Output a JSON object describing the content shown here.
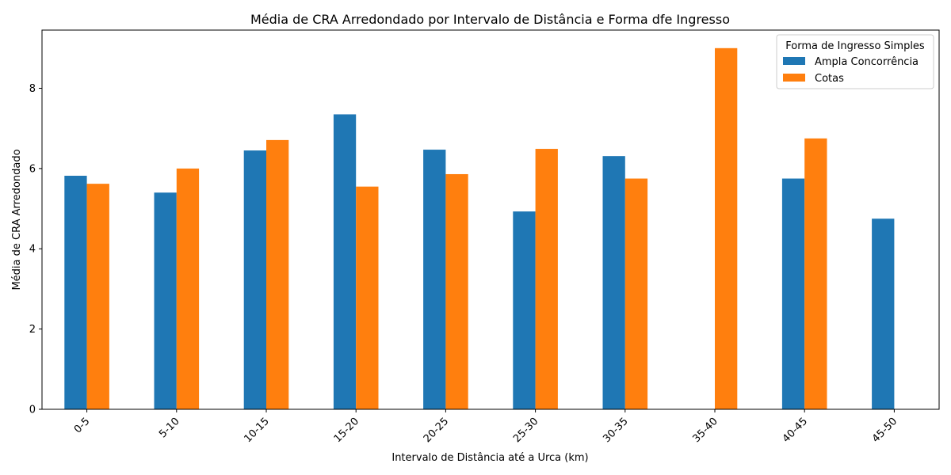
{
  "chart_data": {
    "type": "bar",
    "title": "Média de CRA Arredondado por Intervalo de Distância e Forma dfe Ingresso",
    "xlabel": "Intervalo de Distância até a Urca (km)",
    "ylabel": "Média de CRA Arredondado",
    "categories": [
      "0-5",
      "5-10",
      "10-15",
      "15-20",
      "20-25",
      "25-30",
      "30-35",
      "35-40",
      "40-45",
      "45-50"
    ],
    "series": [
      {
        "name": "Ampla Concorrência",
        "color": "#1f77b4",
        "values": [
          5.82,
          5.4,
          6.45,
          7.35,
          6.47,
          4.93,
          6.31,
          null,
          5.75,
          4.75
        ]
      },
      {
        "name": "Cotas",
        "color": "#ff7f0e",
        "values": [
          5.62,
          6.0,
          6.71,
          5.55,
          5.86,
          6.49,
          5.75,
          9.0,
          6.75,
          null
        ]
      }
    ],
    "ylim": [
      0,
      9.45
    ],
    "yticks": [
      0,
      2,
      4,
      6,
      8
    ],
    "grid": false,
    "legend": {
      "title": "Forma de Ingresso Simples",
      "position": "top-right"
    }
  }
}
